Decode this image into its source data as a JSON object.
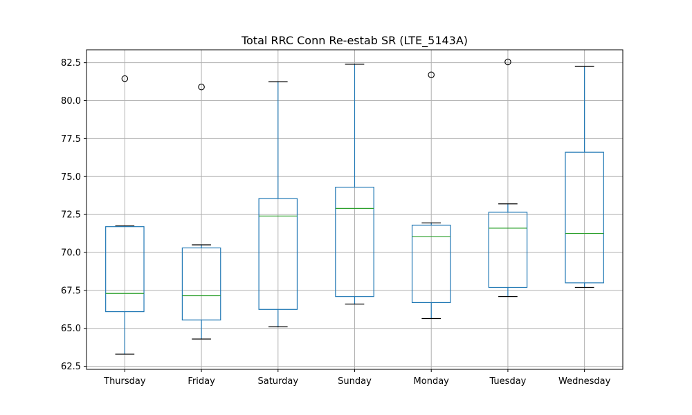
{
  "chart_data": {
    "type": "box",
    "title": "Total RRC Conn Re-estab SR (LTE_5143A)",
    "xlabel": "",
    "ylabel": "",
    "ylim": [
      62.3,
      83.35
    ],
    "yticks": [
      62.5,
      65.0,
      67.5,
      70.0,
      72.5,
      75.0,
      77.5,
      80.0,
      82.5
    ],
    "ytick_labels": [
      "62.5",
      "65.0",
      "67.5",
      "70.0",
      "72.5",
      "75.0",
      "77.5",
      "80.0",
      "82.5"
    ],
    "grid": true,
    "categories": [
      "Thursday",
      "Friday",
      "Saturday",
      "Sunday",
      "Monday",
      "Tuesday",
      "Wednesday"
    ],
    "boxes": [
      {
        "category": "Thursday",
        "whisker_low": 63.3,
        "q1": 66.1,
        "median": 67.3,
        "q3": 71.7,
        "whisker_high": 71.75,
        "outliers": [
          81.45
        ]
      },
      {
        "category": "Friday",
        "whisker_low": 64.3,
        "q1": 65.55,
        "median": 67.15,
        "q3": 70.3,
        "whisker_high": 70.5,
        "outliers": [
          80.9
        ]
      },
      {
        "category": "Saturday",
        "whisker_low": 65.1,
        "q1": 66.25,
        "median": 72.4,
        "q3": 73.55,
        "whisker_high": 81.25,
        "outliers": []
      },
      {
        "category": "Sunday",
        "whisker_low": 66.6,
        "q1": 67.1,
        "median": 72.9,
        "q3": 74.3,
        "whisker_high": 82.4,
        "outliers": []
      },
      {
        "category": "Monday",
        "whisker_low": 65.65,
        "q1": 66.7,
        "median": 71.05,
        "q3": 71.8,
        "whisker_high": 71.95,
        "outliers": [
          81.7
        ]
      },
      {
        "category": "Tuesday",
        "whisker_low": 67.1,
        "q1": 67.7,
        "median": 71.6,
        "q3": 72.65,
        "whisker_high": 73.2,
        "outliers": [
          82.55
        ]
      },
      {
        "category": "Wednesday",
        "whisker_low": 67.7,
        "q1": 68.0,
        "median": 71.25,
        "q3": 76.6,
        "whisker_high": 82.25,
        "outliers": []
      }
    ],
    "colors": {
      "box": "#1f77b4",
      "median": "#2ca02c",
      "whisker_cap": "#000000",
      "outlier": "#000000",
      "grid": "#b0b0b0",
      "axes": "#000000"
    }
  }
}
